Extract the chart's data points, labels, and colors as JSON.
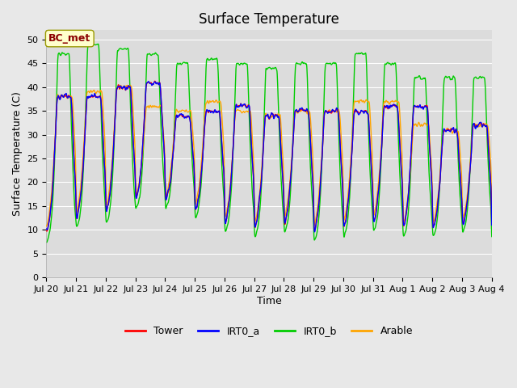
{
  "title": "Surface Temperature",
  "xlabel": "Time",
  "ylabel": "Surface Temperature (C)",
  "ylim": [
    0,
    52
  ],
  "yticks": [
    0,
    5,
    10,
    15,
    20,
    25,
    30,
    35,
    40,
    45,
    50
  ],
  "fig_bg_color": "#e8e8e8",
  "plot_bg_color": "#dcdcdc",
  "annotation_text": "BC_met",
  "annotation_color": "#8b0000",
  "annotation_bg": "#ffffcc",
  "series": [
    "Tower",
    "IRT0_a",
    "IRT0_b",
    "Arable"
  ],
  "colors": [
    "red",
    "blue",
    "#00cc00",
    "orange"
  ],
  "n_days": 15,
  "points_per_day": 144,
  "tick_labels": [
    "Jul 20",
    "Jul 21",
    "Jul 22",
    "Jul 23",
    "Jul 24",
    "Jul 25",
    "Jul 26",
    "Jul 27",
    "Jul 28",
    "Jul 29",
    "Jul 30",
    "Jul 31",
    "Aug 1",
    "Aug 2",
    "Aug 3",
    "Aug 4"
  ],
  "title_fontsize": 12,
  "axis_fontsize": 9,
  "tick_fontsize": 8,
  "legend_fontsize": 9
}
